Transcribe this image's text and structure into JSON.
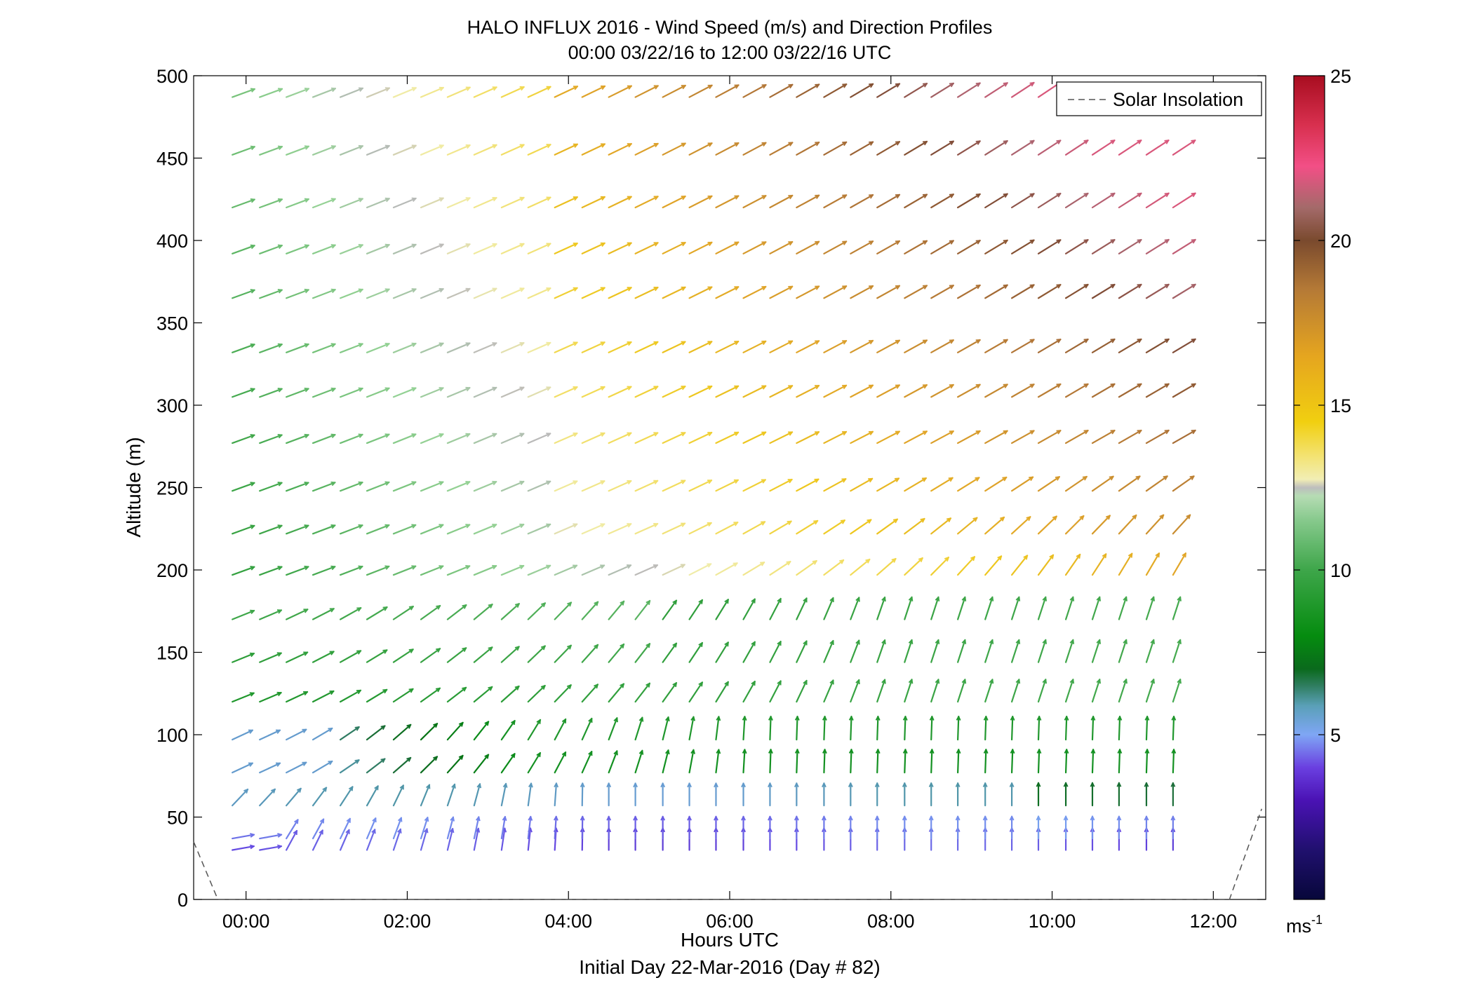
{
  "chart_data": {
    "type": "quiver",
    "title": "HALO INFLUX 2016 - Wind Speed (m/s) and Direction Profiles",
    "subtitle": "00:00 03/22/16 to 12:00 03/22/16  UTC",
    "xlabel": "Hours UTC",
    "xlabel2": "Initial Day 22-Mar-2016 (Day # 82)",
    "ylabel": "Altitude (m)",
    "xlim": [
      -0.65,
      12.65
    ],
    "ylim": [
      0,
      500
    ],
    "x_ticks": [
      0,
      2,
      4,
      6,
      8,
      10,
      12
    ],
    "x_tick_labels": [
      "00:00",
      "02:00",
      "04:00",
      "06:00",
      "08:00",
      "10:00",
      "12:00"
    ],
    "y_ticks": [
      0,
      50,
      100,
      150,
      200,
      250,
      300,
      350,
      400,
      450,
      500
    ],
    "y_tick_labels": [
      "0",
      "50",
      "100",
      "150",
      "200",
      "250",
      "300",
      "350",
      "400",
      "450",
      "500"
    ],
    "legend": {
      "label": "Solar Insolation",
      "position": "top-right"
    },
    "colorbar": {
      "range": [
        0,
        25
      ],
      "ticks": [
        5,
        10,
        15,
        20,
        25
      ],
      "tick_labels": [
        "5",
        "10",
        "15",
        "20",
        "25"
      ],
      "unit": "ms",
      "unit_exponent": "-1"
    },
    "times_hours": [
      -0.17,
      0.17,
      0.5,
      0.83,
      1.17,
      1.5,
      1.83,
      2.17,
      2.5,
      2.83,
      3.17,
      3.5,
      3.83,
      4.17,
      4.5,
      4.83,
      5.17,
      5.5,
      5.83,
      6.17,
      6.5,
      6.83,
      7.17,
      7.5,
      7.83,
      8.17,
      8.5,
      8.83,
      9.17,
      9.5,
      9.83,
      10.17,
      10.5,
      10.83,
      11.17,
      11.5
    ],
    "altitudes_m": [
      30,
      37,
      57,
      77,
      97,
      120,
      144,
      170,
      197,
      222,
      248,
      277,
      305,
      332,
      365,
      392,
      420,
      452,
      487
    ],
    "solar_insolation_line": [
      [
        -0.65,
        35
      ],
      [
        -0.35,
        0
      ],
      [
        12.2,
        0
      ],
      [
        12.6,
        55
      ]
    ]
  }
}
